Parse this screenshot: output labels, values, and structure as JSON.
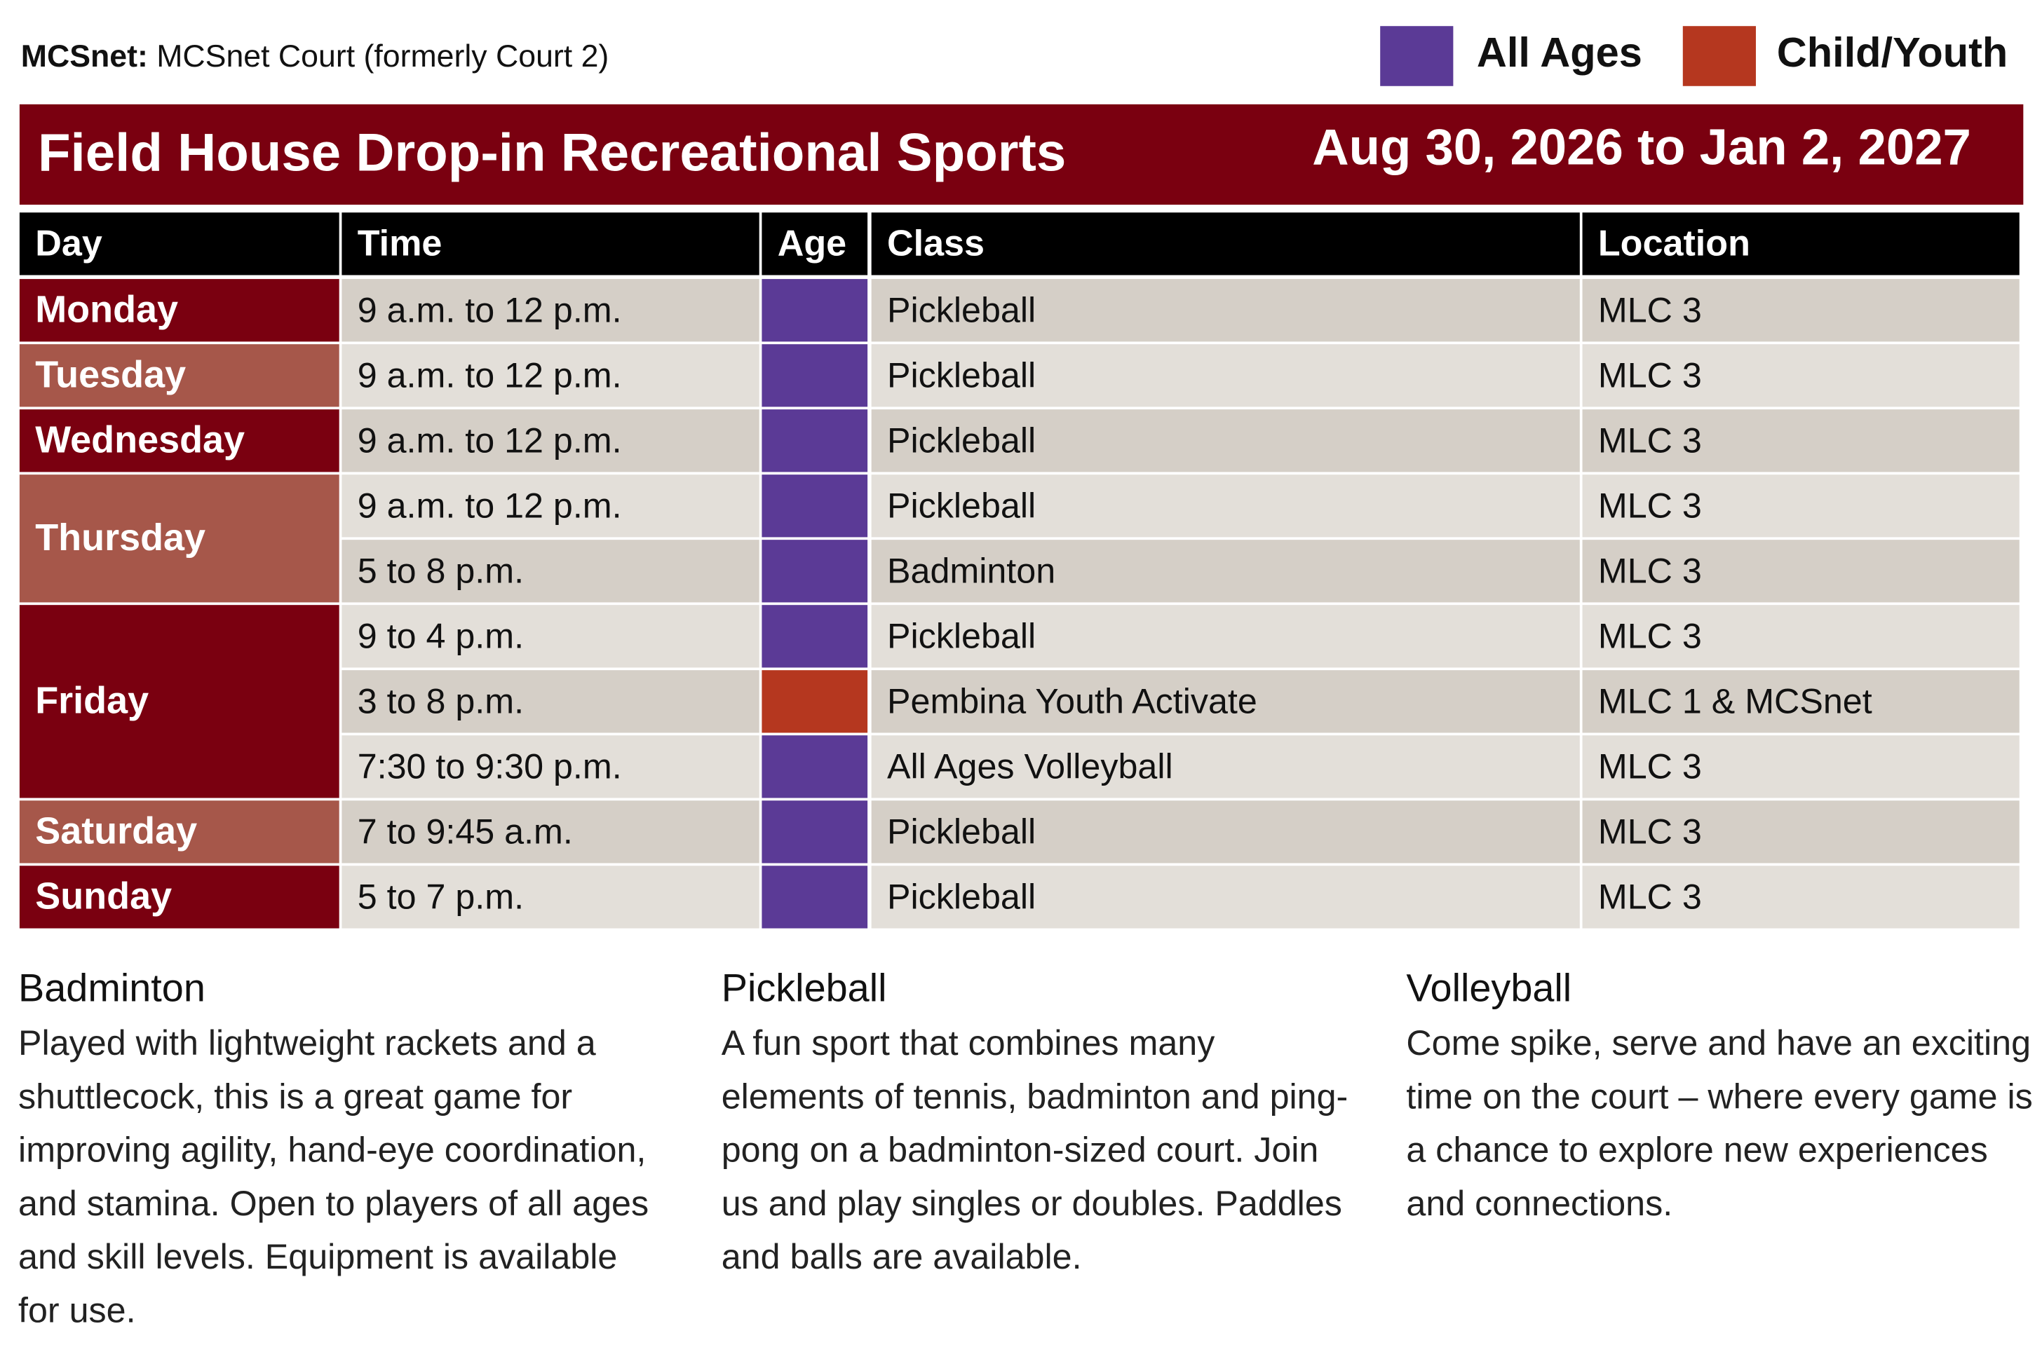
{
  "header": {
    "label": "MCSnet:",
    "text": "MCSnet Court (formerly Court 2)"
  },
  "legend": [
    {
      "label": "All Ages",
      "color": "#5b3a96"
    },
    {
      "label": "Child/Youth",
      "color": "#b5371f"
    }
  ],
  "banner": {
    "title": "Field House Drop-in Recreational Sports",
    "dates": "Aug 30, 2026 to Jan 2, 2027"
  },
  "table": {
    "columns": [
      "Day",
      "Time",
      "Age",
      "Class",
      "Location"
    ],
    "days": [
      {
        "day": "Monday",
        "rows": [
          {
            "time": "9 a.m. to 12 p.m.",
            "age": "All Ages",
            "class": "Pickleball",
            "location": "MLC 3"
          }
        ]
      },
      {
        "day": "Tuesday",
        "rows": [
          {
            "time": "9 a.m. to 12 p.m.",
            "age": "All Ages",
            "class": "Pickleball",
            "location": "MLC 3"
          }
        ]
      },
      {
        "day": "Wednesday",
        "rows": [
          {
            "time": "9 a.m. to 12 p.m.",
            "age": "All Ages",
            "class": "Pickleball",
            "location": "MLC 3"
          }
        ]
      },
      {
        "day": "Thursday",
        "rows": [
          {
            "time": "9 a.m. to 12 p.m.",
            "age": "All Ages",
            "class": "Pickleball",
            "location": "MLC 3"
          },
          {
            "time": "5 to 8 p.m.",
            "age": "All Ages",
            "class": "Badminton",
            "location": "MLC 3"
          }
        ]
      },
      {
        "day": "Friday",
        "rows": [
          {
            "time": "9 to 4 p.m.",
            "age": "All Ages",
            "class": "Pickleball",
            "location": "MLC 3"
          },
          {
            "time": "3 to 8 p.m.",
            "age": "Child/Youth",
            "class": "Pembina Youth Activate",
            "location": "MLC 1 & MCSnet"
          },
          {
            "time": "7:30 to 9:30 p.m.",
            "age": "All Ages",
            "class": "All Ages Volleyball",
            "location": "MLC 3"
          }
        ]
      },
      {
        "day": "Saturday",
        "rows": [
          {
            "time": "7 to 9:45 a.m.",
            "age": "All Ages",
            "class": "Pickleball",
            "location": "MLC 3"
          }
        ]
      },
      {
        "day": "Sunday",
        "rows": [
          {
            "time": "5 to 7 p.m.",
            "age": "All Ages",
            "class": "Pickleball",
            "location": "MLC 3"
          }
        ]
      }
    ]
  },
  "descriptions": [
    {
      "title": "Badminton",
      "text": "Played with lightweight rackets and a shuttlecock, this is a great game for improving agility, hand-eye coordination, and stamina. Open to players of all ages and skill levels. Equipment is available for use."
    },
    {
      "title": "Pickleball",
      "text": "A fun sport that combines many elements of tennis, badminton and ping-pong on a badminton-sized court. Join us and play singles or doubles. Paddles and balls are available."
    },
    {
      "title": "Volleyball",
      "text": "Come spike, serve and have an exciting time on the court – where every game is a chance to explore new experiences and connections."
    }
  ]
}
